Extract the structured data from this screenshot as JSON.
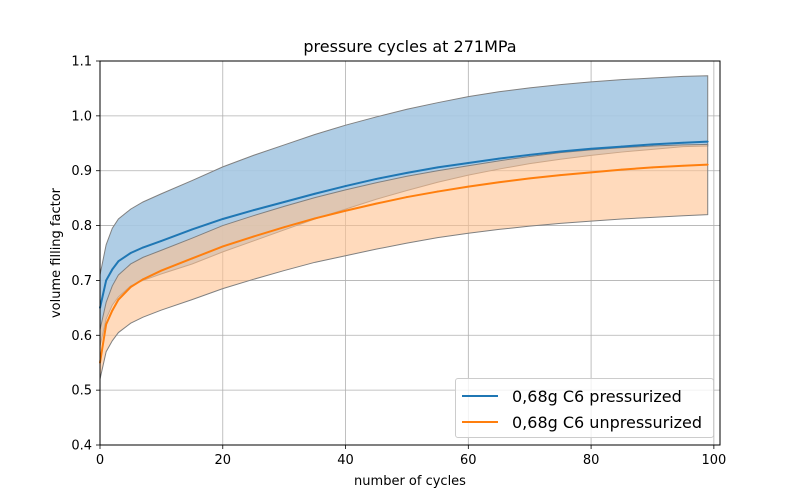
{
  "chart_data": {
    "type": "line",
    "title": "pressure cycles at 271MPa",
    "xlabel": "number of cycles",
    "ylabel": "volume filling factor",
    "xlim": [
      0,
      101
    ],
    "ylim": [
      0.4,
      1.1
    ],
    "xticks": [
      "0",
      "20",
      "40",
      "60",
      "80",
      "100"
    ],
    "yticks": [
      "0.4",
      "0.5",
      "0.6",
      "0.7",
      "0.8",
      "0.9",
      "1.0",
      "1.1"
    ],
    "grid": true,
    "legend_position": "lower right",
    "x": [
      0,
      1,
      2,
      3,
      5,
      7,
      10,
      15,
      20,
      25,
      30,
      35,
      40,
      45,
      50,
      55,
      60,
      65,
      70,
      75,
      80,
      85,
      90,
      95,
      99
    ],
    "series": [
      {
        "name": "0,68g C6 pressurized",
        "color": "#1f77b4",
        "band_color": "#a6c8e2",
        "values": [
          0.65,
          0.7,
          0.72,
          0.735,
          0.75,
          0.76,
          0.772,
          0.793,
          0.812,
          0.828,
          0.843,
          0.858,
          0.872,
          0.885,
          0.896,
          0.906,
          0.914,
          0.922,
          0.929,
          0.935,
          0.94,
          0.944,
          0.948,
          0.951,
          0.953
        ],
        "upper": [
          0.71,
          0.765,
          0.795,
          0.812,
          0.83,
          0.843,
          0.858,
          0.882,
          0.907,
          0.928,
          0.947,
          0.966,
          0.983,
          0.998,
          1.012,
          1.024,
          1.035,
          1.044,
          1.051,
          1.057,
          1.062,
          1.066,
          1.069,
          1.072,
          1.073
        ],
        "lower": [
          0.58,
          0.63,
          0.655,
          0.67,
          0.69,
          0.7,
          0.712,
          0.73,
          0.752,
          0.772,
          0.792,
          0.812,
          0.83,
          0.848,
          0.864,
          0.879,
          0.892,
          0.903,
          0.913,
          0.921,
          0.928,
          0.934,
          0.939,
          0.944,
          0.945
        ]
      },
      {
        "name": "0,68g C6 unpressurized",
        "color": "#ff7f0e",
        "band_color": "#ffc18f",
        "values": [
          0.55,
          0.62,
          0.645,
          0.665,
          0.688,
          0.702,
          0.718,
          0.74,
          0.762,
          0.78,
          0.797,
          0.813,
          0.827,
          0.84,
          0.852,
          0.862,
          0.871,
          0.879,
          0.886,
          0.892,
          0.897,
          0.902,
          0.906,
          0.909,
          0.911
        ],
        "upper": [
          0.61,
          0.66,
          0.69,
          0.71,
          0.73,
          0.742,
          0.755,
          0.777,
          0.8,
          0.818,
          0.835,
          0.851,
          0.865,
          0.878,
          0.89,
          0.9,
          0.909,
          0.918,
          0.926,
          0.933,
          0.938,
          0.942,
          0.945,
          0.947,
          0.948
        ],
        "lower": [
          0.52,
          0.57,
          0.59,
          0.605,
          0.622,
          0.633,
          0.646,
          0.665,
          0.685,
          0.702,
          0.718,
          0.733,
          0.745,
          0.757,
          0.768,
          0.778,
          0.786,
          0.793,
          0.799,
          0.804,
          0.808,
          0.812,
          0.815,
          0.818,
          0.82
        ]
      }
    ]
  }
}
